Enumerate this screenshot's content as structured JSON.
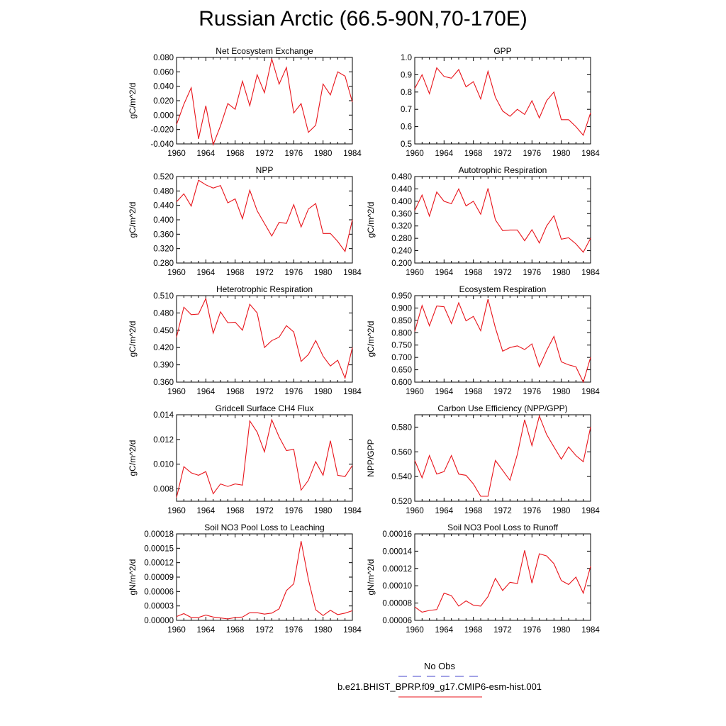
{
  "title": "Russian Arctic (66.5-90N,70-170E)",
  "legend": {
    "obs_label": "No Obs",
    "obs_color": "#4444cc",
    "model_label": "b.e21.BHIST_BPRP.f09_g17.CMIP6-esm-hist.001",
    "model_color": "#e8141b"
  },
  "chart_data": [
    {
      "type": "line",
      "title": "Net Ecosystem Exchange",
      "ylabel": "gC/m^2/d",
      "xlim": [
        1960,
        1984
      ],
      "ylim": [
        -0.04,
        0.08
      ],
      "yticks": [
        -0.04,
        -0.02,
        0.0,
        0.02,
        0.04,
        0.06,
        0.08
      ],
      "yticklabels": [
        "-0.040",
        "-0.020",
        "0.000",
        "0.020",
        "0.040",
        "0.060",
        "0.080"
      ],
      "xticks": [
        1960,
        1964,
        1968,
        1972,
        1976,
        1980,
        1984
      ],
      "x": [
        1960,
        1961,
        1962,
        1963,
        1964,
        1965,
        1966,
        1967,
        1968,
        1969,
        1970,
        1971,
        1972,
        1973,
        1974,
        1975,
        1976,
        1977,
        1978,
        1979,
        1980,
        1981,
        1982,
        1983,
        1984
      ],
      "series": [
        {
          "values": [
            -0.013,
            0.015,
            0.038,
            -0.033,
            0.013,
            -0.041,
            -0.015,
            0.016,
            0.008,
            0.047,
            0.013,
            0.056,
            0.031,
            0.078,
            0.043,
            0.066,
            0.003,
            0.016,
            -0.024,
            -0.014,
            0.043,
            0.028,
            0.06,
            0.054,
            0.018
          ]
        }
      ]
    },
    {
      "type": "line",
      "title": "GPP",
      "ylabel": "",
      "xlim": [
        1960,
        1984
      ],
      "ylim": [
        0.5,
        1.0
      ],
      "yticks": [
        0.5,
        0.6,
        0.7,
        0.8,
        0.9,
        1.0
      ],
      "yticklabels": [
        "0.5",
        "0.6",
        "0.7",
        "0.8",
        "0.9",
        "1.0"
      ],
      "xticks": [
        1960,
        1964,
        1968,
        1972,
        1976,
        1980,
        1984
      ],
      "x": [
        1960,
        1961,
        1962,
        1963,
        1964,
        1965,
        1966,
        1967,
        1968,
        1969,
        1970,
        1971,
        1972,
        1973,
        1974,
        1975,
        1976,
        1977,
        1978,
        1979,
        1980,
        1981,
        1982,
        1983,
        1984
      ],
      "series": [
        {
          "values": [
            0.82,
            0.9,
            0.79,
            0.94,
            0.89,
            0.88,
            0.93,
            0.83,
            0.86,
            0.76,
            0.92,
            0.77,
            0.69,
            0.66,
            0.7,
            0.67,
            0.75,
            0.65,
            0.75,
            0.8,
            0.64,
            0.64,
            0.6,
            0.55,
            0.68
          ]
        }
      ]
    },
    {
      "type": "line",
      "title": "NPP",
      "ylabel": "gC/m^2/d",
      "xlim": [
        1960,
        1984
      ],
      "ylim": [
        0.28,
        0.52
      ],
      "yticks": [
        0.28,
        0.32,
        0.36,
        0.4,
        0.44,
        0.48,
        0.52
      ],
      "yticklabels": [
        "0.280",
        "0.320",
        "0.360",
        "0.400",
        "0.440",
        "0.480",
        "0.520"
      ],
      "xticks": [
        1960,
        1964,
        1968,
        1972,
        1976,
        1980,
        1984
      ],
      "x": [
        1960,
        1961,
        1962,
        1963,
        1964,
        1965,
        1966,
        1967,
        1968,
        1969,
        1970,
        1971,
        1972,
        1973,
        1974,
        1975,
        1976,
        1977,
        1978,
        1979,
        1980,
        1981,
        1982,
        1983,
        1984
      ],
      "series": [
        {
          "values": [
            0.45,
            0.472,
            0.438,
            0.51,
            0.497,
            0.488,
            0.495,
            0.447,
            0.458,
            0.403,
            0.482,
            0.425,
            0.39,
            0.355,
            0.393,
            0.39,
            0.442,
            0.38,
            0.43,
            0.445,
            0.362,
            0.362,
            0.34,
            0.312,
            0.4
          ]
        }
      ]
    },
    {
      "type": "line",
      "title": "Autotrophic Respiration",
      "ylabel": "gC/m^2/d",
      "xlim": [
        1960,
        1984
      ],
      "ylim": [
        0.2,
        0.48
      ],
      "yticks": [
        0.2,
        0.24,
        0.28,
        0.32,
        0.36,
        0.4,
        0.44,
        0.48
      ],
      "yticklabels": [
        "0.200",
        "0.240",
        "0.280",
        "0.320",
        "0.360",
        "0.400",
        "0.440",
        "0.480"
      ],
      "xticks": [
        1960,
        1964,
        1968,
        1972,
        1976,
        1980,
        1984
      ],
      "x": [
        1960,
        1961,
        1962,
        1963,
        1964,
        1965,
        1966,
        1967,
        1968,
        1969,
        1970,
        1971,
        1972,
        1973,
        1974,
        1975,
        1976,
        1977,
        1978,
        1979,
        1980,
        1981,
        1982,
        1983,
        1984
      ],
      "series": [
        {
          "values": [
            0.37,
            0.42,
            0.352,
            0.43,
            0.4,
            0.392,
            0.44,
            0.385,
            0.4,
            0.358,
            0.442,
            0.34,
            0.305,
            0.307,
            0.307,
            0.272,
            0.308,
            0.265,
            0.32,
            0.353,
            0.277,
            0.282,
            0.262,
            0.235,
            0.28
          ]
        }
      ]
    },
    {
      "type": "line",
      "title": "Heterotrophic Respiration",
      "ylabel": "gC/m^2/d",
      "xlim": [
        1960,
        1984
      ],
      "ylim": [
        0.36,
        0.51
      ],
      "yticks": [
        0.36,
        0.39,
        0.42,
        0.45,
        0.48,
        0.51
      ],
      "yticklabels": [
        "0.360",
        "0.390",
        "0.420",
        "0.450",
        "0.480",
        "0.510"
      ],
      "xticks": [
        1960,
        1964,
        1968,
        1972,
        1976,
        1980,
        1984
      ],
      "x": [
        1960,
        1961,
        1962,
        1963,
        1964,
        1965,
        1966,
        1967,
        1968,
        1969,
        1970,
        1971,
        1972,
        1973,
        1974,
        1975,
        1976,
        1977,
        1978,
        1979,
        1980,
        1981,
        1982,
        1983,
        1984
      ],
      "series": [
        {
          "values": [
            0.438,
            0.49,
            0.477,
            0.478,
            0.505,
            0.445,
            0.482,
            0.463,
            0.464,
            0.45,
            0.495,
            0.48,
            0.42,
            0.432,
            0.438,
            0.458,
            0.447,
            0.396,
            0.408,
            0.432,
            0.405,
            0.388,
            0.398,
            0.367,
            0.42
          ]
        }
      ]
    },
    {
      "type": "line",
      "title": "Ecosystem Respiration",
      "ylabel": "gC/m^2/d",
      "xlim": [
        1960,
        1984
      ],
      "ylim": [
        0.6,
        0.95
      ],
      "yticks": [
        0.6,
        0.65,
        0.7,
        0.75,
        0.8,
        0.85,
        0.9,
        0.95
      ],
      "yticklabels": [
        "0.600",
        "0.650",
        "0.700",
        "0.750",
        "0.800",
        "0.850",
        "0.900",
        "0.950"
      ],
      "xticks": [
        1960,
        1964,
        1968,
        1972,
        1976,
        1980,
        1984
      ],
      "x": [
        1960,
        1961,
        1962,
        1963,
        1964,
        1965,
        1966,
        1967,
        1968,
        1969,
        1970,
        1971,
        1972,
        1973,
        1974,
        1975,
        1976,
        1977,
        1978,
        1979,
        1980,
        1981,
        1982,
        1983,
        1984
      ],
      "series": [
        {
          "values": [
            0.805,
            0.91,
            0.828,
            0.908,
            0.905,
            0.837,
            0.921,
            0.848,
            0.866,
            0.808,
            0.936,
            0.82,
            0.725,
            0.74,
            0.747,
            0.732,
            0.755,
            0.662,
            0.728,
            0.785,
            0.682,
            0.67,
            0.662,
            0.6,
            0.7
          ]
        }
      ]
    },
    {
      "type": "line",
      "title": "Gridcell Surface CH4 Flux",
      "ylabel": "gC/m^2/d",
      "xlim": [
        1960,
        1984
      ],
      "ylim": [
        0.007,
        0.014
      ],
      "yticks": [
        0.008,
        0.01,
        0.012,
        0.014
      ],
      "yticklabels": [
        "0.008",
        "0.010",
        "0.012",
        "0.014"
      ],
      "xticks": [
        1960,
        1964,
        1968,
        1972,
        1976,
        1980,
        1984
      ],
      "x": [
        1960,
        1961,
        1962,
        1963,
        1964,
        1965,
        1966,
        1967,
        1968,
        1969,
        1970,
        1971,
        1972,
        1973,
        1974,
        1975,
        1976,
        1977,
        1978,
        1979,
        1980,
        1981,
        1982,
        1983,
        1984
      ],
      "series": [
        {
          "values": [
            0.0073,
            0.0098,
            0.0093,
            0.0091,
            0.0094,
            0.0076,
            0.0084,
            0.0082,
            0.0084,
            0.0083,
            0.0135,
            0.0126,
            0.011,
            0.0136,
            0.0122,
            0.0111,
            0.0112,
            0.0079,
            0.0087,
            0.0102,
            0.0091,
            0.0119,
            0.0091,
            0.009,
            0.0099
          ]
        }
      ]
    },
    {
      "type": "line",
      "title": "Carbon Use Efficiency (NPP/GPP)",
      "ylabel": "NPP/GPP",
      "xlim": [
        1960,
        1984
      ],
      "ylim": [
        0.52,
        0.59
      ],
      "yticks": [
        0.52,
        0.54,
        0.56,
        0.58
      ],
      "yticklabels": [
        "0.520",
        "0.540",
        "0.560",
        "0.580"
      ],
      "xticks": [
        1960,
        1964,
        1968,
        1972,
        1976,
        1980,
        1984
      ],
      "x": [
        1960,
        1961,
        1962,
        1963,
        1964,
        1965,
        1966,
        1967,
        1968,
        1969,
        1970,
        1971,
        1972,
        1973,
        1974,
        1975,
        1976,
        1977,
        1978,
        1979,
        1980,
        1981,
        1982,
        1983,
        1984
      ],
      "series": [
        {
          "values": [
            0.553,
            0.539,
            0.557,
            0.542,
            0.544,
            0.557,
            0.542,
            0.541,
            0.534,
            0.524,
            0.524,
            0.553,
            0.545,
            0.537,
            0.558,
            0.586,
            0.565,
            0.589,
            0.574,
            0.564,
            0.554,
            0.564,
            0.557,
            0.552,
            0.58
          ]
        }
      ]
    },
    {
      "type": "line",
      "title": "Soil NO3 Pool Loss to Leaching",
      "ylabel": "gN/m^2/d",
      "xlim": [
        1960,
        1984
      ],
      "ylim": [
        0.0,
        0.00018
      ],
      "yticks": [
        0.0,
        3e-05,
        6e-05,
        9e-05,
        0.00012,
        0.00015,
        0.00018
      ],
      "yticklabels": [
        "0.00000",
        "0.00003",
        "0.00006",
        "0.00009",
        "0.00012",
        "0.00015",
        "0.00018"
      ],
      "xticks": [
        1960,
        1964,
        1968,
        1972,
        1976,
        1980,
        1984
      ],
      "x": [
        1960,
        1961,
        1962,
        1963,
        1964,
        1965,
        1966,
        1967,
        1968,
        1969,
        1970,
        1971,
        1972,
        1973,
        1974,
        1975,
        1976,
        1977,
        1978,
        1979,
        1980,
        1981,
        1982,
        1983,
        1984
      ],
      "series": [
        {
          "values": [
            8e-06,
            1.4e-05,
            6e-06,
            6e-06,
            1.1e-05,
            7e-06,
            5e-06,
            3e-06,
            6e-06,
            7e-06,
            1.6e-05,
            1.6e-05,
            1.3e-05,
            1.5e-05,
            2.4e-05,
            6.2e-05,
            7.6e-05,
            0.000165,
            8.5e-05,
            2.2e-05,
            1e-05,
            2.1e-05,
            1.2e-05,
            1.5e-05,
            2e-05
          ]
        }
      ]
    },
    {
      "type": "line",
      "title": "Soil NO3 Pool Loss to Runoff",
      "ylabel": "gN/m^2/d",
      "xlim": [
        1960,
        1984
      ],
      "ylim": [
        6e-05,
        0.00016
      ],
      "yticks": [
        6e-05,
        8e-05,
        0.0001,
        0.00012,
        0.00014,
        0.00016
      ],
      "yticklabels": [
        "0.00006",
        "0.00008",
        "0.00010",
        "0.00012",
        "0.00014",
        "0.00016"
      ],
      "xticks": [
        1960,
        1964,
        1968,
        1972,
        1976,
        1980,
        1984
      ],
      "x": [
        1960,
        1961,
        1962,
        1963,
        1964,
        1965,
        1966,
        1967,
        1968,
        1969,
        1970,
        1971,
        1972,
        1973,
        1974,
        1975,
        1976,
        1977,
        1978,
        1979,
        1980,
        1981,
        1982,
        1983,
        1984
      ],
      "series": [
        {
          "values": [
            7.55e-05,
            6.95e-05,
            7.15e-05,
            7.25e-05,
            9.15e-05,
            8.85e-05,
            7.65e-05,
            8.25e-05,
            7.75e-05,
            7.65e-05,
            8.75e-05,
            0.0001085,
            9.45e-05,
            0.000104,
            0.0001025,
            0.000141,
            0.000103,
            0.000137,
            0.0001345,
            0.0001255,
            0.000106,
            0.0001015,
            0.00011,
            9.15e-05,
            0.0001225
          ]
        }
      ]
    }
  ]
}
